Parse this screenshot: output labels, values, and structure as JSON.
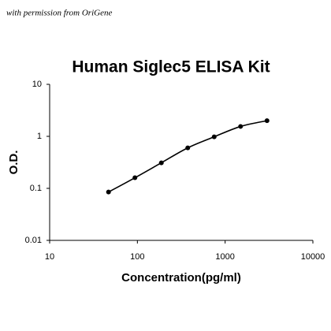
{
  "annotation": "with permission from OriGene",
  "chart_data": {
    "type": "line",
    "title": "Human Siglec5 ELISA Kit",
    "x_label": "Concentration(pg/ml)",
    "y_label": "O.D.",
    "x": [
      46.875,
      93.75,
      187.5,
      375,
      750,
      1500,
      3000
    ],
    "series": [
      {
        "name": "O.D.",
        "color": "#000000",
        "values": [
          0.085,
          0.16,
          0.31,
          0.6,
          0.98,
          1.55,
          2.0
        ]
      }
    ],
    "xlim": [
      10,
      10000
    ],
    "ylim": [
      0.01,
      10
    ],
    "xticks": [
      10,
      100,
      1000,
      10000
    ],
    "yticks": [
      0.01,
      0.1,
      1,
      10
    ],
    "xscale": "log",
    "yscale": "log",
    "grid": false
  }
}
